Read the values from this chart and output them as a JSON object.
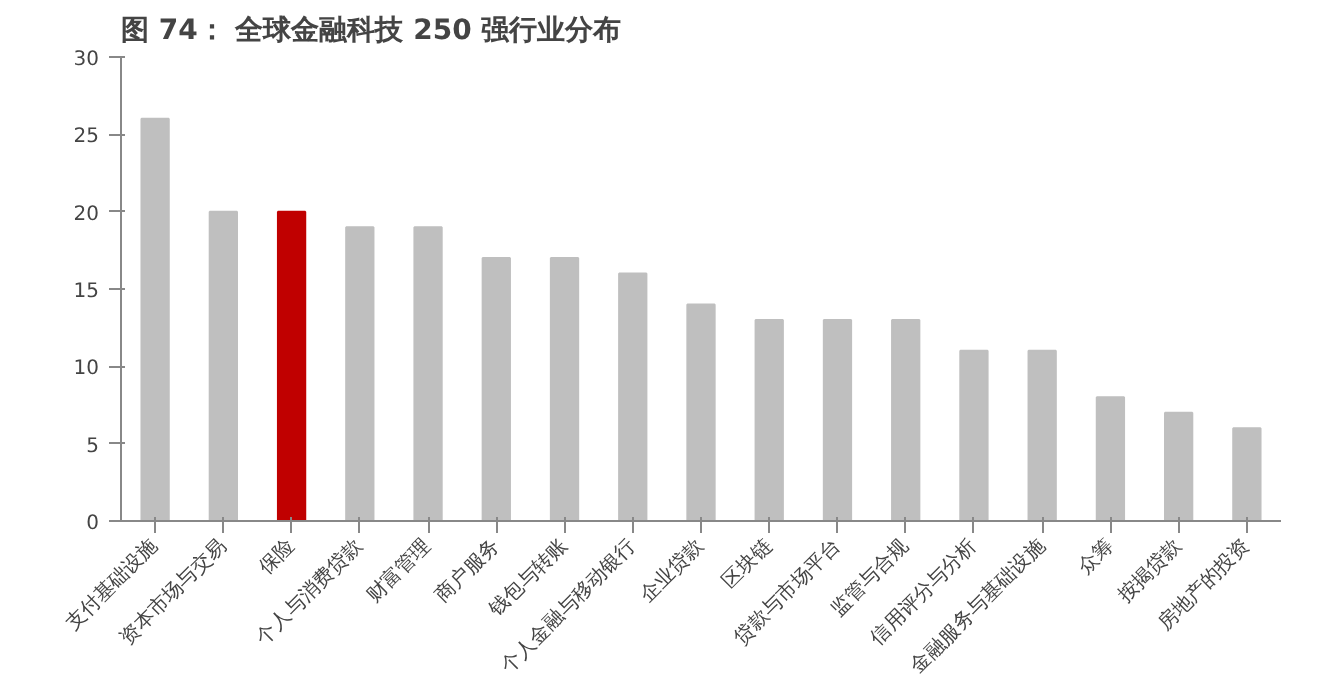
{
  "chart_data": {
    "type": "bar",
    "title": "图 74： 全球金融科技 250 强行业分布",
    "categories": [
      "支付基础设施",
      "资本市场与交易",
      "保险",
      "个人与消费贷款",
      "财富管理",
      "商户服务",
      "钱包与转账",
      "个人金融与移动银行",
      "企业贷款",
      "区块链",
      "贷款与市场平台",
      "监管与合规",
      "信用评分与分析",
      "金融服务与基础设施",
      "众筹",
      "按揭贷款",
      "房地产的投资"
    ],
    "values": [
      26,
      20,
      20,
      19,
      19,
      17,
      17,
      16,
      14,
      13,
      13,
      13,
      11,
      11,
      8,
      7,
      6
    ],
    "colors": [
      "#bfbfbf",
      "#bfbfbf",
      "#c00000",
      "#bfbfbf",
      "#bfbfbf",
      "#bfbfbf",
      "#bfbfbf",
      "#bfbfbf",
      "#bfbfbf",
      "#bfbfbf",
      "#bfbfbf",
      "#bfbfbf",
      "#bfbfbf",
      "#bfbfbf",
      "#bfbfbf",
      "#bfbfbf",
      "#bfbfbf"
    ],
    "ylim": [
      0,
      30
    ],
    "yticks": [
      0,
      5,
      10,
      15,
      20,
      25,
      30
    ],
    "grid": false
  }
}
